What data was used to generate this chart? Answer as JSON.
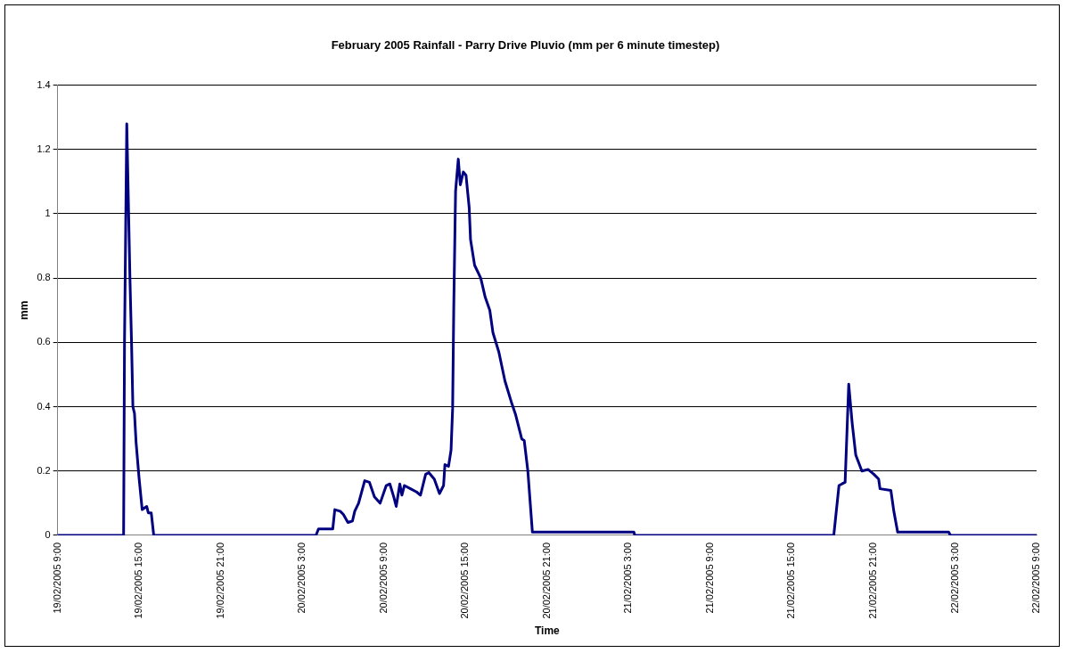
{
  "chart_data": {
    "type": "line",
    "title": "February 2005 Rainfall - Parry Drive Pluvio (mm per 6 minute timestep)",
    "xlabel": "Time",
    "ylabel": "mm",
    "x": [
      "2005-02-19T09:00",
      "2005-02-19T13:51",
      "2005-02-19T13:55",
      "2005-02-19T14:05",
      "2005-02-19T14:19",
      "2005-02-19T14:26",
      "2005-02-19T14:32",
      "2005-02-19T14:39",
      "2005-02-19T14:46",
      "2005-02-19T14:59",
      "2005-02-19T15:13",
      "2005-02-19T15:33",
      "2005-02-19T15:40",
      "2005-02-19T15:53",
      "2005-02-19T16:04",
      "2005-02-20T04:00",
      "2005-02-20T04:11",
      "2005-02-20T05:14",
      "2005-02-20T05:23",
      "2005-02-20T05:47",
      "2005-02-20T06:01",
      "2005-02-20T06:21",
      "2005-02-20T06:41",
      "2005-02-20T06:51",
      "2005-02-20T07:08",
      "2005-02-20T07:35",
      "2005-02-20T07:56",
      "2005-02-20T08:18",
      "2005-02-20T08:43",
      "2005-02-20T09:10",
      "2005-02-20T09:26",
      "2005-02-20T09:43",
      "2005-02-20T09:54",
      "2005-02-20T10:10",
      "2005-02-20T10:19",
      "2005-02-20T10:30",
      "2005-02-20T10:57",
      "2005-02-20T11:24",
      "2005-02-20T11:41",
      "2005-02-20T12:04",
      "2005-02-20T12:18",
      "2005-02-20T12:42",
      "2005-02-20T13:05",
      "2005-02-20T13:23",
      "2005-02-20T13:29",
      "2005-02-20T13:45",
      "2005-02-20T13:56",
      "2005-02-20T14:03",
      "2005-02-20T14:08",
      "2005-02-20T14:16",
      "2005-02-20T14:28",
      "2005-02-20T14:37",
      "2005-02-20T14:50",
      "2005-02-20T15:02",
      "2005-02-20T15:16",
      "2005-02-20T15:22",
      "2005-02-20T15:40",
      "2005-02-20T16:07",
      "2005-02-20T16:27",
      "2005-02-20T16:47",
      "2005-02-20T17:01",
      "2005-02-20T17:27",
      "2005-02-20T17:54",
      "2005-02-20T18:22",
      "2005-02-20T18:41",
      "2005-02-20T19:08",
      "2005-02-20T19:19",
      "2005-02-20T19:35",
      "2005-02-20T19:55",
      "2005-02-21T03:23",
      "2005-02-21T03:27",
      "2005-02-21T18:05",
      "2005-02-21T18:28",
      "2005-02-21T18:41",
      "2005-02-21T18:55",
      "2005-02-21T19:11",
      "2005-02-21T19:26",
      "2005-02-21T19:42",
      "2005-02-21T20:09",
      "2005-02-21T20:36",
      "2005-02-21T21:02",
      "2005-02-21T21:23",
      "2005-02-21T21:29",
      "2005-02-21T22:17",
      "2005-02-21T22:30",
      "2005-02-21T22:47",
      "2005-02-22T02:32",
      "2005-02-22T02:40",
      "2005-02-22T09:00"
    ],
    "series": [
      {
        "color": "#000080",
        "values": [
          0,
          0,
          0.6,
          1.28,
          0.8,
          0.6,
          0.4,
          0.38,
          0.29,
          0.18,
          0.08,
          0.09,
          0.07,
          0.07,
          0,
          0,
          0.02,
          0.02,
          0.08,
          0.075,
          0.065,
          0.04,
          0.045,
          0.075,
          0.1,
          0.17,
          0.165,
          0.12,
          0.1,
          0.155,
          0.16,
          0.12,
          0.09,
          0.16,
          0.125,
          0.155,
          0.145,
          0.135,
          0.125,
          0.19,
          0.195,
          0.175,
          0.13,
          0.155,
          0.22,
          0.215,
          0.265,
          0.395,
          0.71,
          1.07,
          1.17,
          1.09,
          1.13,
          1.12,
          1.02,
          0.92,
          0.84,
          0.8,
          0.74,
          0.7,
          0.63,
          0.57,
          0.48,
          0.415,
          0.375,
          0.3,
          0.295,
          0.2,
          0.01,
          0.01,
          0,
          0,
          0.155,
          0.16,
          0.165,
          0.47,
          0.35,
          0.25,
          0.2,
          0.205,
          0.19,
          0.175,
          0.145,
          0.14,
          0.075,
          0.01,
          0.01,
          0,
          0
        ]
      }
    ],
    "xlim": [
      "2005-02-19T09:00",
      "2005-02-22T09:00"
    ],
    "xticks": [
      {
        "value": "2005-02-19T09:00",
        "label": "19/02/2005 9:00"
      },
      {
        "value": "2005-02-19T15:00",
        "label": "19/02/2005 15:00"
      },
      {
        "value": "2005-02-19T21:00",
        "label": "19/02/2005 21:00"
      },
      {
        "value": "2005-02-20T03:00",
        "label": "20/02/2005 3:00"
      },
      {
        "value": "2005-02-20T09:00",
        "label": "20/02/2005 9:00"
      },
      {
        "value": "2005-02-20T15:00",
        "label": "20/02/2005 15:00"
      },
      {
        "value": "2005-02-20T21:00",
        "label": "20/02/2005 21:00"
      },
      {
        "value": "2005-02-21T03:00",
        "label": "21/02/2005 3:00"
      },
      {
        "value": "2005-02-21T09:00",
        "label": "21/02/2005 9:00"
      },
      {
        "value": "2005-02-21T15:00",
        "label": "21/02/2005 15:00"
      },
      {
        "value": "2005-02-21T21:00",
        "label": "21/02/2005 21:00"
      },
      {
        "value": "2005-02-22T03:00",
        "label": "22/02/2005 3:00"
      },
      {
        "value": "2005-02-22T09:00",
        "label": "22/02/2005 9:00"
      }
    ],
    "ylim": [
      0,
      1.4
    ],
    "yticks": [
      0,
      0.2,
      0.4,
      0.6,
      0.8,
      1,
      1.2,
      1.4
    ],
    "grid": "y",
    "legend": false,
    "marker": "none",
    "line_style": "solid"
  }
}
